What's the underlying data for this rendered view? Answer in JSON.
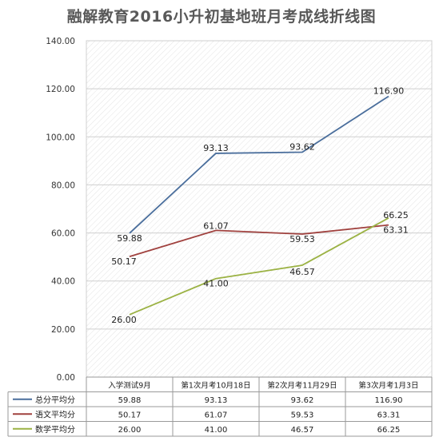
{
  "chart_data": {
    "type": "line",
    "title": "融解教育2016小升初基地班月考成线折线图",
    "categories": [
      "入学测试9月",
      "第1次月考10月18日",
      "第2次月考11月29日",
      "第3次月考1月3日"
    ],
    "ylim": [
      0,
      140
    ],
    "yticks": [
      "0.00",
      "20.00",
      "40.00",
      "60.00",
      "80.00",
      "100.00",
      "120.00",
      "140.00"
    ],
    "grid": true,
    "legend": "data-table-bottom",
    "series": [
      {
        "name": "总分平均分",
        "color": "#4a6e9c",
        "values": [
          59.88,
          93.13,
          93.62,
          116.9
        ],
        "labels": [
          "59.88",
          "93.13",
          "93.62",
          "116.90"
        ]
      },
      {
        "name": "语文平均分",
        "color": "#a0413e",
        "values": [
          50.17,
          61.07,
          59.53,
          63.31
        ],
        "labels": [
          "50.17",
          "61.07",
          "59.53",
          "63.31"
        ]
      },
      {
        "name": "数学平均分",
        "color": "#9bb244",
        "values": [
          26.0,
          41.0,
          46.57,
          66.25
        ],
        "labels": [
          "26.00",
          "41.00",
          "46.57",
          "66.25"
        ]
      }
    ]
  }
}
